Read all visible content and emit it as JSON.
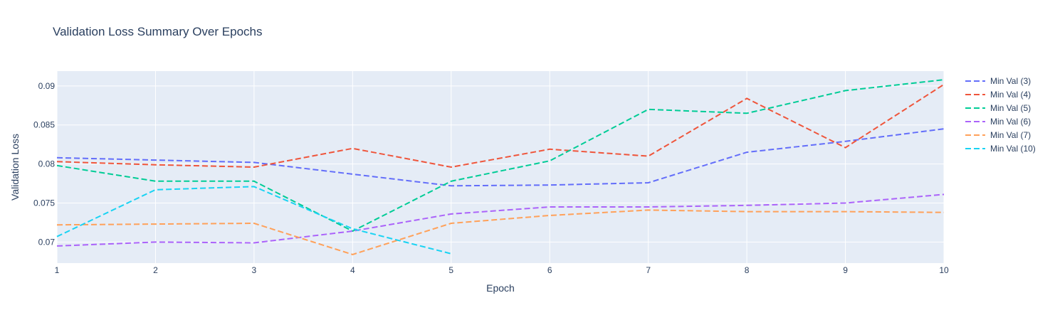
{
  "chart_data": {
    "type": "line",
    "title": "Validation Loss Summary Over Epochs",
    "xlabel": "Epoch",
    "ylabel": "Validation Loss",
    "xlim": [
      1,
      10
    ],
    "ylim": [
      0.0673,
      0.0919
    ],
    "xticks": [
      1,
      2,
      3,
      4,
      5,
      6,
      7,
      8,
      9,
      10
    ],
    "yticks": [
      0.07,
      0.075,
      0.08,
      0.085,
      0.09
    ],
    "ytick_labels": [
      "0.07",
      "0.075",
      "0.08",
      "0.085",
      "0.09"
    ],
    "grid": true,
    "line_style": "dashed",
    "legend_position": "right",
    "plot_bg": "#e5ecf6",
    "series": [
      {
        "name": "Min Val (3)",
        "color": "#636efa",
        "x": [
          1,
          2,
          3,
          4,
          5,
          6,
          7,
          8,
          9,
          10
        ],
        "y": [
          0.0808,
          0.0805,
          0.0802,
          0.0787,
          0.0772,
          0.0773,
          0.0776,
          0.0815,
          0.0829,
          0.0845
        ]
      },
      {
        "name": "Min Val (4)",
        "color": "#ef553b",
        "x": [
          1,
          2,
          3,
          4,
          5,
          6,
          7,
          8,
          9,
          10
        ],
        "y": [
          0.0803,
          0.0799,
          0.0796,
          0.082,
          0.0796,
          0.0819,
          0.081,
          0.0884,
          0.0821,
          0.0902
        ]
      },
      {
        "name": "Min Val (5)",
        "color": "#00cc96",
        "x": [
          1,
          2,
          3,
          4,
          5,
          6,
          7,
          8,
          9,
          10
        ],
        "y": [
          0.0798,
          0.0778,
          0.0778,
          0.0714,
          0.0778,
          0.0804,
          0.087,
          0.0865,
          0.0894,
          0.0908
        ]
      },
      {
        "name": "Min Val (6)",
        "color": "#ab63fa",
        "x": [
          1,
          2,
          3,
          4,
          5,
          6,
          7,
          8,
          9,
          10
        ],
        "y": [
          0.0695,
          0.07,
          0.0699,
          0.0714,
          0.0736,
          0.0745,
          0.0745,
          0.0747,
          0.075,
          0.0761
        ]
      },
      {
        "name": "Min Val (7)",
        "color": "#ffa15a",
        "x": [
          1,
          2,
          3,
          4,
          5,
          6,
          7,
          8,
          9,
          10
        ],
        "y": [
          0.0722,
          0.0723,
          0.0724,
          0.0684,
          0.0724,
          0.0734,
          0.0741,
          0.0739,
          0.0739,
          0.0738
        ]
      },
      {
        "name": "Min Val (10)",
        "color": "#19d3f3",
        "x": [
          1,
          2,
          3,
          4,
          5
        ],
        "y": [
          0.0707,
          0.0767,
          0.0771,
          0.0717,
          0.0685
        ]
      }
    ]
  }
}
